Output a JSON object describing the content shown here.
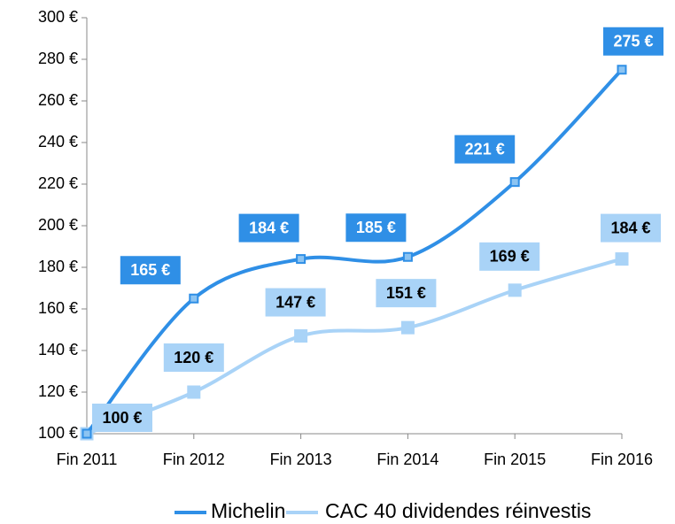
{
  "chart_data": {
    "type": "line",
    "categories": [
      "Fin 2011",
      "Fin 2012",
      "Fin 2013",
      "Fin 2014",
      "Fin 2015",
      "Fin 2016"
    ],
    "series": [
      {
        "name": "Michelin",
        "color": "#2f8fe6",
        "values": [
          100,
          165,
          184,
          185,
          221,
          275
        ],
        "value_labels": [
          null,
          "165 €",
          "184 €",
          "185 €",
          "221 €",
          "275 €"
        ]
      },
      {
        "name": "CAC 40 dividendes réinvestis",
        "color": "#a9d3f7",
        "values": [
          100,
          120,
          147,
          151,
          169,
          184
        ],
        "value_labels": [
          "100 €",
          "120 €",
          "147 €",
          "151 €",
          "169 €",
          "184 €"
        ]
      }
    ],
    "ylim": [
      100,
      300
    ],
    "yticks": [
      {
        "value": 100,
        "label": "100 €"
      },
      {
        "value": 120,
        "label": "120 €"
      },
      {
        "value": 140,
        "label": "140 €"
      },
      {
        "value": 160,
        "label": "160 €"
      },
      {
        "value": 180,
        "label": "180 €"
      },
      {
        "value": 200,
        "label": "200 €"
      },
      {
        "value": 220,
        "label": "220 €"
      },
      {
        "value": 240,
        "label": "240 €"
      },
      {
        "value": 260,
        "label": "260 €"
      },
      {
        "value": 280,
        "label": "280 €"
      },
      {
        "value": 300,
        "label": "300 €"
      }
    ],
    "legend": "bottom"
  }
}
